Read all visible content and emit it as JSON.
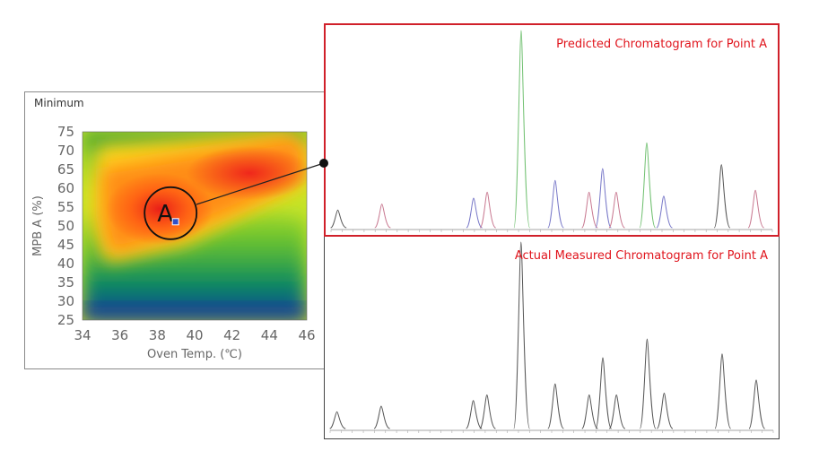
{
  "chart_data": [
    {
      "type": "heatmap",
      "title": "Minimum",
      "xlabel": "Oven Temp. (℃)",
      "ylabel": "MPB A (%)",
      "xlim": [
        34,
        46
      ],
      "ylim": [
        25,
        75
      ],
      "xticks": [
        "34",
        "36",
        "38",
        "40",
        "42",
        "44",
        "46"
      ],
      "yticks": [
        "25",
        "30",
        "35",
        "40",
        "45",
        "50",
        "55",
        "60",
        "65",
        "70",
        "75"
      ],
      "colorscale": [
        "#1a3aa8",
        "#10a84a",
        "#b8e020",
        "#ffe020",
        "#ff8c10",
        "#e81818"
      ],
      "point": {
        "label": "A",
        "x": 39,
        "y": 51
      }
    },
    {
      "type": "line",
      "title": "Predicted Chromatogram for Point A",
      "peaks": [
        {
          "x": 0.02,
          "h": 0.09,
          "color": "#555555"
        },
        {
          "x": 0.15,
          "h": 0.12,
          "color": "#c87890"
        },
        {
          "x": 0.42,
          "h": 0.15,
          "color": "#7878c8"
        },
        {
          "x": 0.46,
          "h": 0.18,
          "color": "#c87890"
        },
        {
          "x": 0.56,
          "h": 1.0,
          "color": "#70c070"
        },
        {
          "x": 0.66,
          "h": 0.24,
          "color": "#7878c8"
        },
        {
          "x": 0.76,
          "h": 0.18,
          "color": "#c87890"
        },
        {
          "x": 0.8,
          "h": 0.3,
          "color": "#7878c8"
        },
        {
          "x": 0.84,
          "h": 0.18,
          "color": "#c87890"
        },
        {
          "x": 0.93,
          "h": 0.43,
          "color": "#70c070"
        },
        {
          "x": 0.98,
          "h": 0.16,
          "color": "#7878c8"
        },
        {
          "x": 1.15,
          "h": 0.32,
          "color": "#555555"
        },
        {
          "x": 1.25,
          "h": 0.19,
          "color": "#c87890"
        }
      ]
    },
    {
      "type": "line",
      "title": "Actual Measured Chromatogram for Point A",
      "peaks": [
        {
          "x": 0.02,
          "h": 0.09,
          "color": "#555555"
        },
        {
          "x": 0.15,
          "h": 0.12,
          "color": "#555555"
        },
        {
          "x": 0.42,
          "h": 0.15,
          "color": "#555555"
        },
        {
          "x": 0.46,
          "h": 0.18,
          "color": "#555555"
        },
        {
          "x": 0.56,
          "h": 1.0,
          "color": "#555555"
        },
        {
          "x": 0.66,
          "h": 0.24,
          "color": "#555555"
        },
        {
          "x": 0.76,
          "h": 0.18,
          "color": "#555555"
        },
        {
          "x": 0.8,
          "h": 0.38,
          "color": "#555555"
        },
        {
          "x": 0.84,
          "h": 0.18,
          "color": "#555555"
        },
        {
          "x": 0.93,
          "h": 0.48,
          "color": "#555555"
        },
        {
          "x": 0.98,
          "h": 0.19,
          "color": "#555555"
        },
        {
          "x": 1.15,
          "h": 0.4,
          "color": "#555555"
        },
        {
          "x": 1.25,
          "h": 0.26,
          "color": "#555555"
        }
      ]
    }
  ]
}
